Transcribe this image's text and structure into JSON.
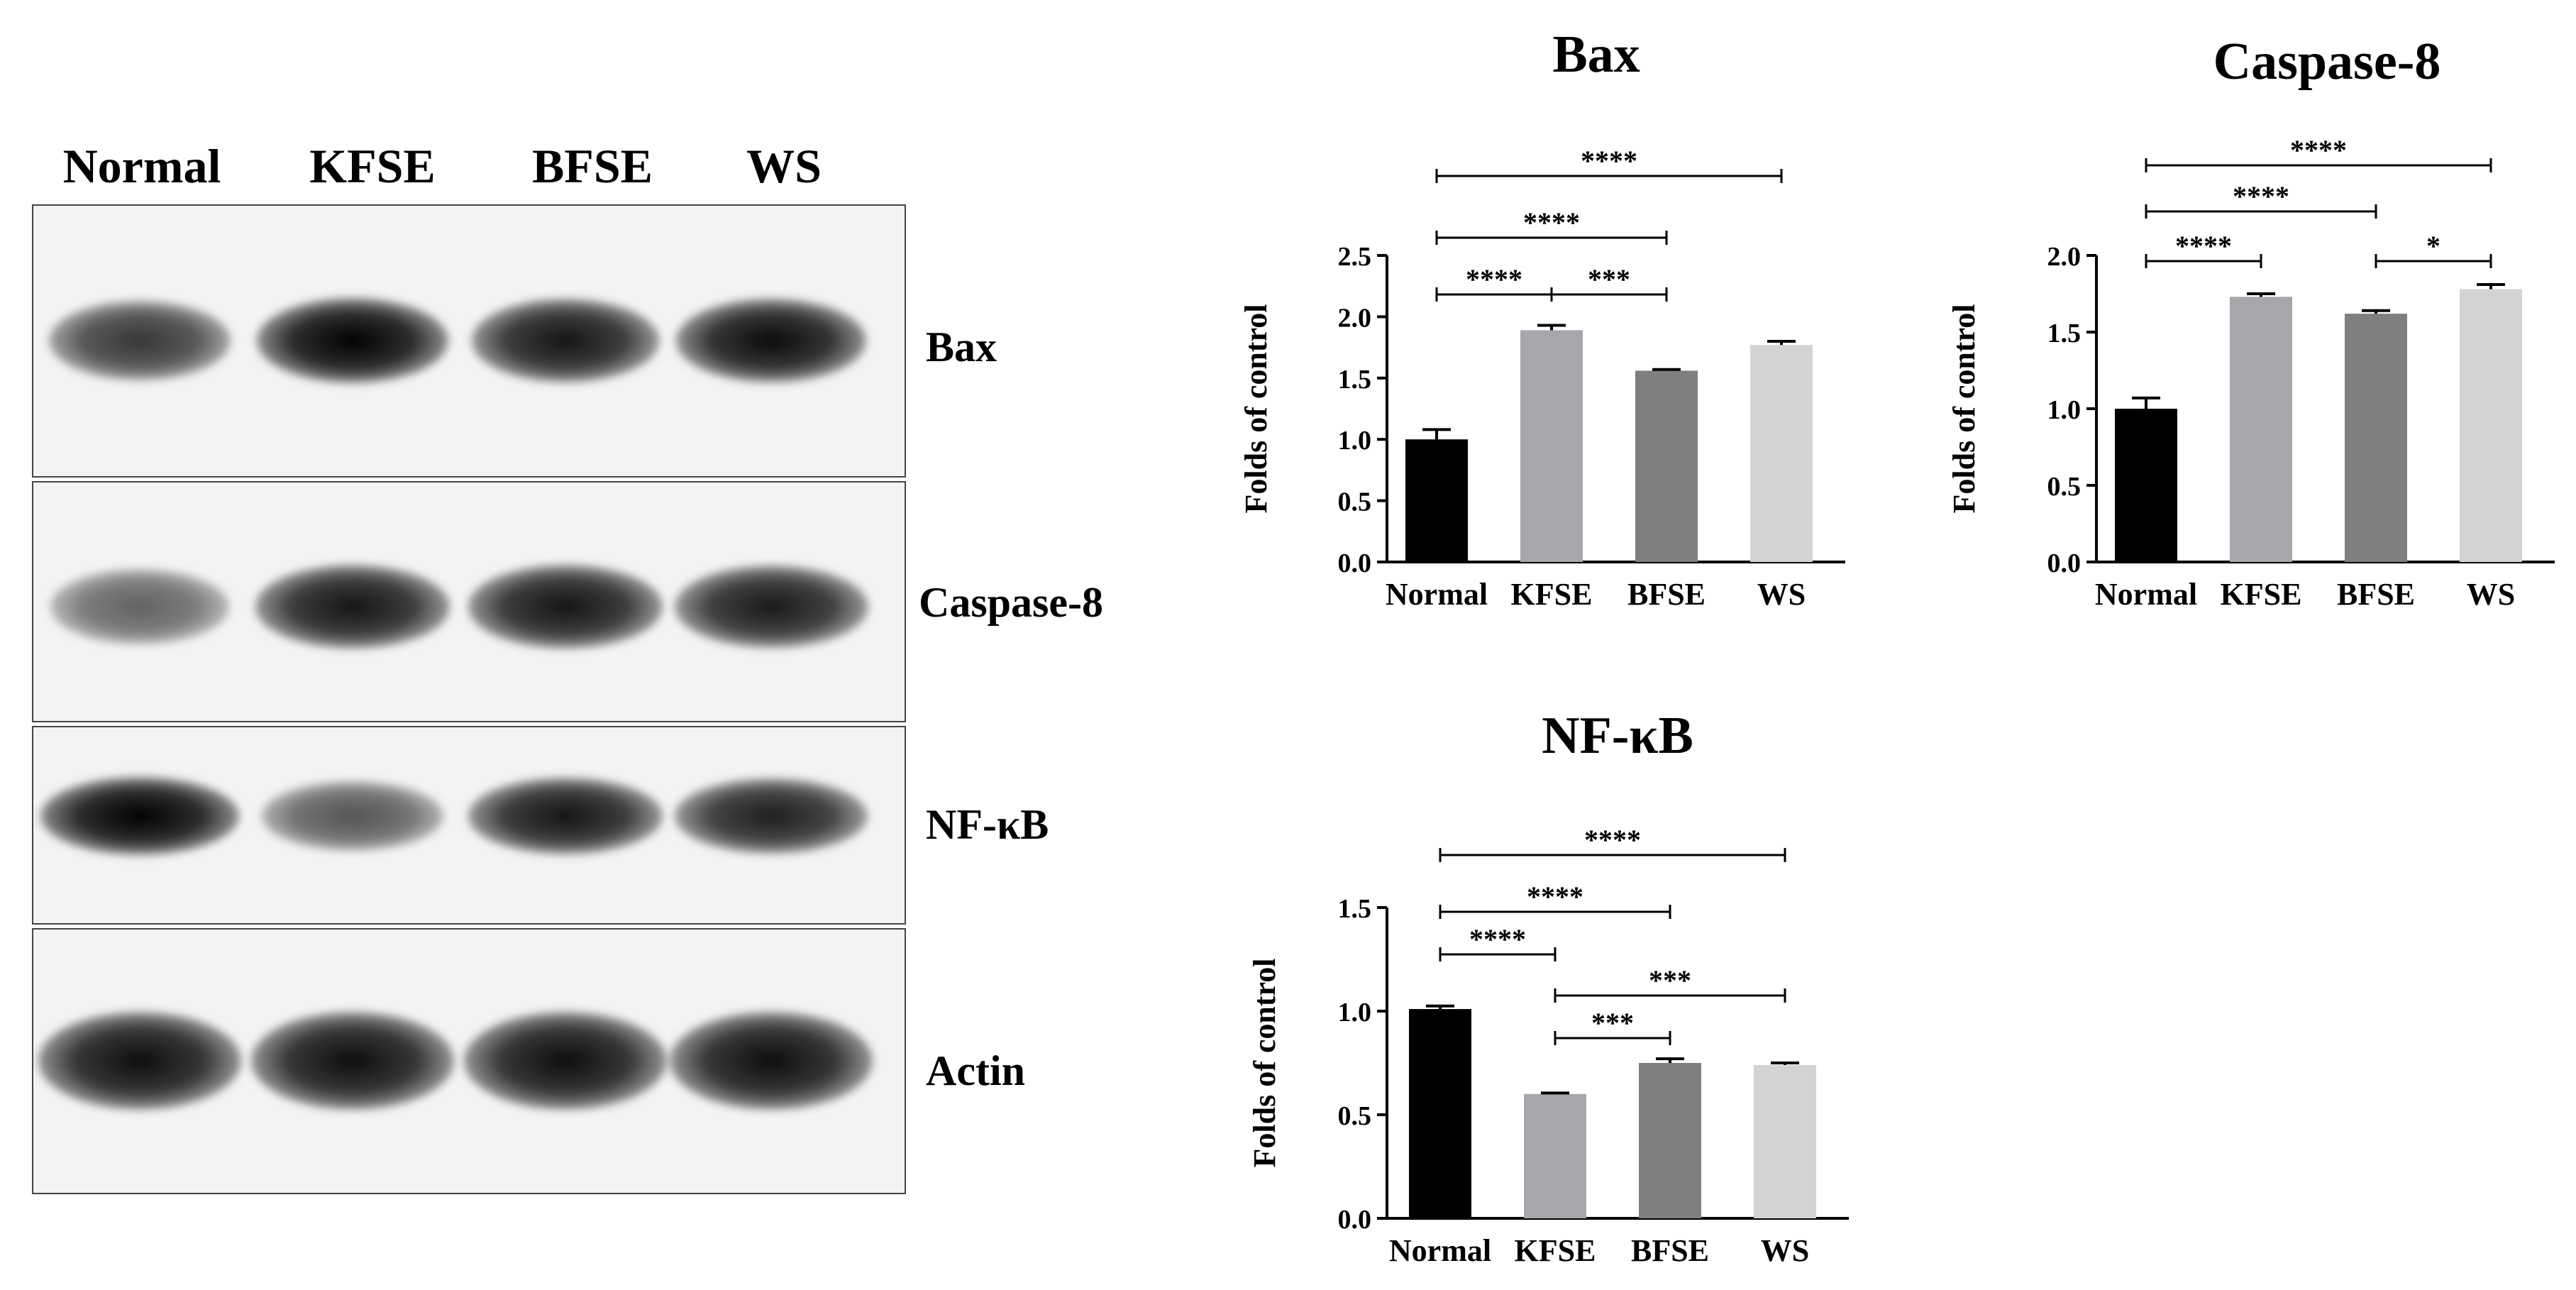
{
  "lanes": [
    "Normal",
    "KFSE",
    "BFSE",
    "WS"
  ],
  "blots": [
    {
      "label": "Bax",
      "intensities": [
        0.78,
        1.0,
        0.92,
        0.96
      ]
    },
    {
      "label": "Caspase-8",
      "intensities": [
        0.6,
        0.92,
        0.92,
        0.9
      ]
    },
    {
      "label": "NF-κB",
      "intensities": [
        1.0,
        0.65,
        0.92,
        0.88
      ]
    },
    {
      "label": "Actin",
      "intensities": [
        0.95,
        0.95,
        0.95,
        0.95
      ]
    }
  ],
  "colors": {
    "Normal": "#000000",
    "KFSE": "#a6a6ab",
    "BFSE": "#7f7f7f",
    "WS": "#d3d3d3"
  },
  "chart_data": [
    {
      "type": "bar",
      "title": "Bax",
      "ylabel": "Folds of control",
      "categories": [
        "Normal",
        "KFSE",
        "BFSE",
        "WS"
      ],
      "values": [
        1.0,
        1.89,
        1.56,
        1.77
      ],
      "errors": [
        0.08,
        0.04,
        0.01,
        0.03
      ],
      "ylim": [
        0,
        2.5
      ],
      "yticks": [
        "0.0",
        "0.5",
        "1.0",
        "1.5",
        "2.0",
        "2.5"
      ],
      "significance": [
        {
          "from": "Normal",
          "to": "WS",
          "label": "****"
        },
        {
          "from": "Normal",
          "to": "BFSE",
          "label": "****"
        },
        {
          "from": "Normal",
          "to": "KFSE",
          "label": "****"
        },
        {
          "from": "KFSE",
          "to": "BFSE",
          "label": "***"
        }
      ]
    },
    {
      "type": "bar",
      "title": "Caspase-8",
      "ylabel": "Folds of control",
      "categories": [
        "Normal",
        "KFSE",
        "BFSE",
        "WS"
      ],
      "values": [
        1.0,
        1.73,
        1.62,
        1.78
      ],
      "errors": [
        0.07,
        0.02,
        0.02,
        0.03
      ],
      "ylim": [
        0,
        2.0
      ],
      "yticks": [
        "0.0",
        "0.5",
        "1.0",
        "1.5",
        "2.0"
      ],
      "significance": [
        {
          "from": "Normal",
          "to": "WS",
          "label": "****"
        },
        {
          "from": "Normal",
          "to": "BFSE",
          "label": "****"
        },
        {
          "from": "Normal",
          "to": "KFSE",
          "label": "****"
        },
        {
          "from": "BFSE",
          "to": "WS",
          "label": "*"
        }
      ]
    },
    {
      "type": "bar",
      "title": "NF-κB",
      "ylabel": "Folds of control",
      "categories": [
        "Normal",
        "KFSE",
        "BFSE",
        "WS"
      ],
      "values": [
        1.01,
        0.6,
        0.75,
        0.74
      ],
      "errors": [
        0.015,
        0.005,
        0.02,
        0.01
      ],
      "ylim": [
        0,
        1.5
      ],
      "yticks": [
        "0.0",
        "0.5",
        "1.0",
        "1.5"
      ],
      "significance": [
        {
          "from": "Normal",
          "to": "WS",
          "label": "****"
        },
        {
          "from": "Normal",
          "to": "BFSE",
          "label": "****"
        },
        {
          "from": "Normal",
          "to": "KFSE",
          "label": "****"
        },
        {
          "from": "KFSE",
          "to": "WS",
          "label": "***"
        },
        {
          "from": "KFSE",
          "to": "BFSE",
          "label": "***"
        }
      ]
    }
  ]
}
